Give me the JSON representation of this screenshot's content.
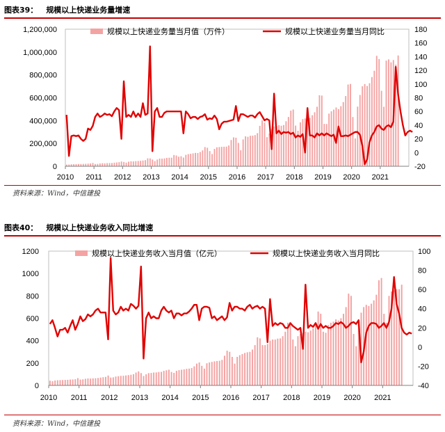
{
  "figures": [
    {
      "label": "图表39：",
      "title": "规模以上快递业务量增速",
      "source": "资料来源：Wind，中信建投"
    },
    {
      "label": "图表40：",
      "title": "规模以上快递业务收入同比增速",
      "source": "资料来源：Wind，中信建投"
    }
  ],
  "chart_data": [
    {
      "type": "bar+line",
      "title": "规模以上快递业务量增速",
      "x_tick_labels": [
        "2010",
        "2011",
        "2012",
        "2013",
        "2014",
        "2015",
        "2016",
        "2017",
        "2018",
        "2019",
        "2020",
        "2021"
      ],
      "y_left": {
        "min": 0,
        "max": 1200000,
        "ticks": [
          0,
          200000,
          400000,
          600000,
          800000,
          1000000,
          1200000
        ],
        "tick_labels": [
          "0",
          "200,000",
          "400,000",
          "600,000",
          "800,000",
          "1,000,000",
          "1,200,000"
        ]
      },
      "y_right": {
        "min": -20,
        "max": 180,
        "ticks": [
          -20,
          0,
          20,
          40,
          60,
          80,
          100,
          120,
          140,
          160,
          180
        ],
        "tick_labels": [
          "-20",
          "0",
          "20",
          "40",
          "60",
          "80",
          "100",
          "120",
          "140",
          "160",
          "180"
        ]
      },
      "legend": {
        "placement": "top"
      },
      "start": "2010-01",
      "series": [
        {
          "name": "规模以上快递业务量当月值（万件）",
          "kind": "bar",
          "color": "#f4a3a3",
          "values": [
            14000,
            15500,
            17500,
            18500,
            18600,
            19300,
            19900,
            20600,
            21400,
            22800,
            24400,
            28900,
            19700,
            20800,
            24500,
            26300,
            25400,
            27200,
            27900,
            28200,
            31000,
            33400,
            35700,
            41500,
            37500,
            31500,
            40000,
            43600,
            42300,
            44700,
            46200,
            47800,
            50400,
            53500,
            69300,
            68900,
            58800,
            44900,
            58300,
            67300,
            66500,
            68700,
            73100,
            74700,
            74900,
            98600,
            94300,
            83800,
            87600,
            76000,
            100000,
            106000,
            109000,
            113000,
            117000,
            116000,
            125000,
            139000,
            168000,
            162000,
            133000,
            107000,
            152000,
            166000,
            168000,
            170000,
            171000,
            172000,
            182000,
            230000,
            253000,
            250000,
            205000,
            140000,
            235000,
            262000,
            258000,
            267000,
            268000,
            273000,
            290000,
            354000,
            402000,
            381000,
            255000,
            287000,
            326000,
            348000,
            353000,
            359000,
            355000,
            361000,
            394000,
            432000,
            487000,
            497000,
            356000,
            311000,
            385000,
            413000,
            419000,
            436000,
            424000,
            447000,
            473000,
            521000,
            622000,
            619000,
            371000,
            370000,
            461000,
            481000,
            496000,
            515000,
            501000,
            526000,
            562000,
            615000,
            716000,
            721000,
            431000,
            243000,
            522000,
            624000,
            700000,
            720000,
            703000,
            727000,
            781000,
            836000,
            967000,
            939000,
            661000,
            521000,
            925000,
            936000,
            910000,
            930000,
            890000,
            970000
          ]
        },
        {
          "name": "规模以上快递业务量当月同比",
          "kind": "line",
          "color": "#e00000",
          "values": [
            55,
            -5,
            24,
            25,
            24,
            25,
            20,
            17,
            20,
            35,
            33,
            39,
            52,
            57,
            52,
            54,
            57,
            55,
            56,
            53,
            60,
            65,
            62,
            20,
            104,
            52,
            55,
            52,
            60,
            52,
            57,
            52,
            72,
            55,
            57,
            155,
            2,
            60,
            65,
            52,
            52,
            58,
            60,
            60,
            60,
            60,
            60,
            60,
            60,
            28,
            60,
            56,
            50,
            52,
            52,
            49,
            52,
            53,
            56,
            48,
            50,
            49,
            54,
            49,
            34,
            42,
            45,
            45,
            46,
            47,
            48,
            68,
            46,
            56,
            56,
            54,
            52,
            54,
            54,
            51,
            56,
            59,
            53,
            47,
            49,
            47,
            5,
            86,
            28,
            32,
            27,
            30,
            29,
            30,
            27,
            29,
            22,
            25,
            23,
            27,
            0,
            65,
            25,
            25,
            22,
            28,
            25,
            28,
            25,
            28,
            26,
            24,
            26,
            14,
            38,
            24,
            24,
            25,
            24,
            26,
            28,
            30,
            30,
            26,
            10,
            -17,
            -10,
            15,
            25,
            30,
            38,
            40,
            35,
            33,
            38,
            40,
            37,
            45,
            125,
            85,
            60,
            40,
            25,
            30,
            32,
            30
          ]
        }
      ]
    },
    {
      "type": "bar+line",
      "title": "规模以上快递业务收入同比增速",
      "x_tick_labels": [
        "2010",
        "2011",
        "2012",
        "2013",
        "2014",
        "2015",
        "2016",
        "2017",
        "2018",
        "2019",
        "2020",
        "2021"
      ],
      "y_left": {
        "min": 0,
        "max": 1200,
        "ticks": [
          0,
          200,
          400,
          600,
          800,
          1000,
          1200
        ],
        "tick_labels": [
          "0",
          "200",
          "400",
          "600",
          "800",
          "1000",
          "1200"
        ]
      },
      "y_right": {
        "min": -40,
        "max": 100,
        "ticks": [
          -40,
          -20,
          0,
          20,
          40,
          60,
          80,
          100
        ],
        "tick_labels": [
          "-40",
          "-20",
          "0",
          "20",
          "40",
          "60",
          "80",
          "100"
        ]
      },
      "legend": {
        "placement": "top"
      },
      "start": "2010-01",
      "series": [
        {
          "name": "规模以上快递业务收入当月值（亿元）",
          "kind": "bar",
          "color": "#f4a3a3",
          "values": [
            42,
            38,
            44,
            46,
            47,
            48,
            49,
            50,
            52,
            53,
            55,
            65,
            52,
            54,
            59,
            62,
            61,
            63,
            64,
            66,
            70,
            73,
            76,
            88,
            70,
            72,
            79,
            82,
            85,
            86,
            89,
            92,
            95,
            100,
            115,
            125,
            110,
            84,
            99,
            110,
            111,
            115,
            116,
            120,
            121,
            130,
            135,
            140,
            120,
            112,
            130,
            136,
            140,
            143,
            148,
            150,
            155,
            170,
            195,
            205,
            175,
            150,
            198,
            205,
            210,
            215,
            218,
            220,
            228,
            265,
            310,
            300,
            255,
            195,
            255,
            270,
            280,
            290,
            296,
            300,
            320,
            360,
            430,
            420,
            360,
            360,
            370,
            400,
            410,
            410,
            418,
            420,
            440,
            480,
            560,
            540,
            410,
            350,
            440,
            460,
            470,
            480,
            475,
            490,
            510,
            560,
            660,
            640,
            480,
            470,
            540,
            560,
            570,
            590,
            580,
            600,
            640,
            700,
            820,
            800,
            460,
            350,
            560,
            650,
            700,
            720,
            710,
            730,
            760,
            810,
            940,
            960,
            640,
            560,
            800,
            840,
            850,
            860,
            860,
            900
          ]
        },
        {
          "name": "规模以上快递业务收入当月同比",
          "kind": "line",
          "color": "#e00000",
          "values": [
            24,
            28,
            20,
            11,
            18,
            18,
            20,
            15,
            22,
            28,
            18,
            24,
            32,
            27,
            29,
            34,
            32,
            34,
            38,
            40,
            36,
            36,
            36,
            8,
            93,
            38,
            34,
            36,
            42,
            38,
            40,
            38,
            45,
            43,
            40,
            43,
            84,
            -12,
            30,
            36,
            30,
            32,
            30,
            30,
            38,
            42,
            38,
            36,
            38,
            30,
            35,
            35,
            33,
            35,
            35,
            37,
            40,
            44,
            44,
            28,
            40,
            42,
            42,
            41,
            30,
            32,
            28,
            30,
            32,
            28,
            31,
            46,
            38,
            42,
            42,
            40,
            40,
            38,
            42,
            44,
            40,
            42,
            43,
            40,
            42,
            40,
            5,
            50,
            22,
            25,
            23,
            25,
            24,
            20,
            20,
            25,
            22,
            20,
            18,
            20,
            -2,
            65,
            20,
            23,
            21,
            25,
            19,
            24,
            20,
            22,
            20,
            20,
            22,
            25,
            24,
            26,
            24,
            20,
            22,
            25,
            26,
            24,
            28,
            -16,
            -5,
            15,
            22,
            25,
            25,
            24,
            20,
            22,
            25,
            20,
            26,
            40,
            73,
            45,
            35,
            20,
            15,
            13,
            15,
            14
          ]
        }
      ]
    }
  ]
}
